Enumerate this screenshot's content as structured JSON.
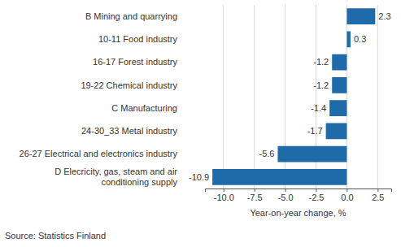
{
  "chart_data": {
    "type": "bar",
    "orientation": "horizontal",
    "categories": [
      "B Mining and quarrying",
      "10-11 Food industry",
      "16-17 Forest industry",
      "19-22 Chemical industry",
      "C Manufacturing",
      "24-30_33 Metal industry",
      "26-27 Electrical and electronics industry",
      "D Elecricity, gas, steam and air conditioning supply"
    ],
    "values": [
      2.3,
      0.3,
      -1.2,
      -1.2,
      -1.4,
      -1.7,
      -5.6,
      -10.9
    ],
    "color": "#1f6aa8",
    "x_label": "Year-on-year change, %",
    "source": "Source: Statistics Finland",
    "xlim": [
      -11.5,
      3.6
    ],
    "xticks": [
      {
        "value": -10,
        "label": "-10.0"
      },
      {
        "value": -7.5,
        "label": "-7.5"
      },
      {
        "value": -5,
        "label": "-5.0"
      },
      {
        "value": -2.5,
        "label": "-2.5"
      },
      {
        "value": 0,
        "label": "0.0"
      },
      {
        "value": 2.5,
        "label": "2.5"
      }
    ],
    "grid": true,
    "data_labels": true
  }
}
